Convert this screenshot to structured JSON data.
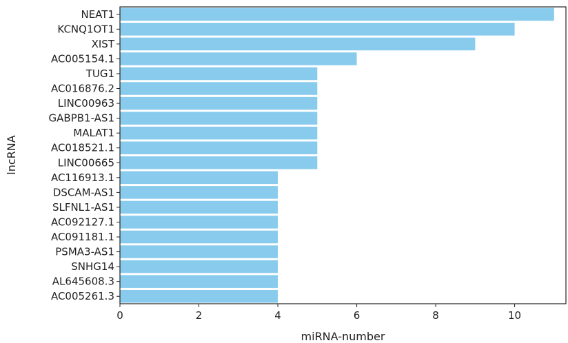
{
  "chart_data": {
    "type": "bar",
    "orientation": "horizontal",
    "title": "",
    "xlabel": "miRNA-number",
    "ylabel": "lncRNA",
    "xlim": [
      0,
      11.3
    ],
    "x_ticks": [
      0,
      2,
      4,
      6,
      8,
      10
    ],
    "grid": false,
    "bar_color": "#89cbed",
    "categories": [
      "NEAT1",
      "KCNQ1OT1",
      "XIST",
      "AC005154.1",
      "TUG1",
      "AC016876.2",
      "LINC00963",
      "GABPB1-AS1",
      "MALAT1",
      "AC018521.1",
      "LINC00665",
      "AC116913.1",
      "DSCAM-AS1",
      "SLFNL1-AS1",
      "AC092127.1",
      "AC091181.1",
      "PSMA3-AS1",
      "SNHG14",
      "AL645608.3",
      "AC005261.3"
    ],
    "values": [
      11,
      10,
      9,
      6,
      5,
      5,
      5,
      5,
      5,
      5,
      5,
      4,
      4,
      4,
      4,
      4,
      4,
      4,
      4,
      4
    ]
  }
}
